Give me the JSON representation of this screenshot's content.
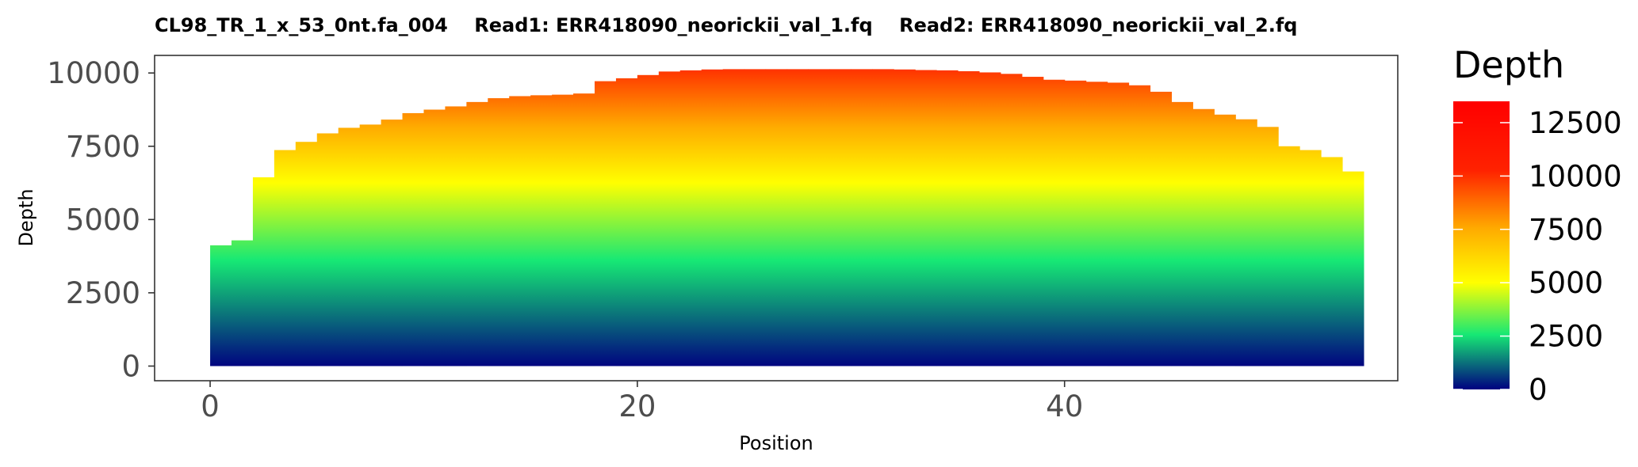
{
  "chart_data": {
    "type": "area",
    "title": "CL98_TR_1_x_53_0nt.fa_004    Read1: ERR418090_neorickii_val_1.fq    Read2: ERR418090_neorickii_val_2.fq",
    "xlabel": "Position",
    "ylabel": "Depth",
    "xlim": [
      -2.6,
      55.6
    ],
    "ylim": [
      -500,
      10600
    ],
    "x_ticks": [
      0,
      20,
      40
    ],
    "x_tick_labels": [
      "0",
      "20",
      "40"
    ],
    "y_ticks": [
      0,
      2500,
      5000,
      7500,
      10000
    ],
    "y_tick_labels": [
      "0",
      "2500",
      "5000",
      "7500",
      "10000"
    ],
    "grid": false,
    "step": true,
    "x": [
      0,
      1,
      2,
      3,
      4,
      5,
      6,
      7,
      8,
      9,
      10,
      11,
      12,
      13,
      14,
      15,
      16,
      17,
      18,
      19,
      20,
      21,
      22,
      23,
      24,
      25,
      26,
      27,
      28,
      29,
      30,
      31,
      32,
      33,
      34,
      35,
      36,
      37,
      38,
      39,
      40,
      41,
      42,
      43,
      44,
      45,
      46,
      47,
      48,
      49,
      50,
      51,
      52,
      53
    ],
    "values": [
      4120,
      4290,
      6440,
      7370,
      7650,
      7940,
      8130,
      8240,
      8410,
      8630,
      8750,
      8860,
      9010,
      9140,
      9210,
      9240,
      9260,
      9300,
      9720,
      9820,
      9930,
      10050,
      10090,
      10120,
      10130,
      10130,
      10130,
      10130,
      10130,
      10130,
      10130,
      10130,
      10120,
      10100,
      10090,
      10060,
      10020,
      9970,
      9870,
      9770,
      9740,
      9700,
      9670,
      9580,
      9360,
      9010,
      8770,
      8580,
      8420,
      8160,
      7500,
      7370,
      7130,
      6640
    ],
    "legend": {
      "title": "Depth",
      "position": "right",
      "type": "colorbar",
      "range": [
        0,
        13500
      ],
      "breaks": [
        0,
        2500,
        5000,
        7500,
        10000,
        12500
      ],
      "labels": [
        "0",
        "2500",
        "5000",
        "7500",
        "10000",
        "12500"
      ]
    },
    "colors": {
      "low": "#000080",
      "mid1": "#16e875",
      "mid2": "#ffff00",
      "mid3": "#ff8c00",
      "high": "#ff0000",
      "axis": "#333333",
      "tick_label": "#4d4d4d"
    }
  }
}
